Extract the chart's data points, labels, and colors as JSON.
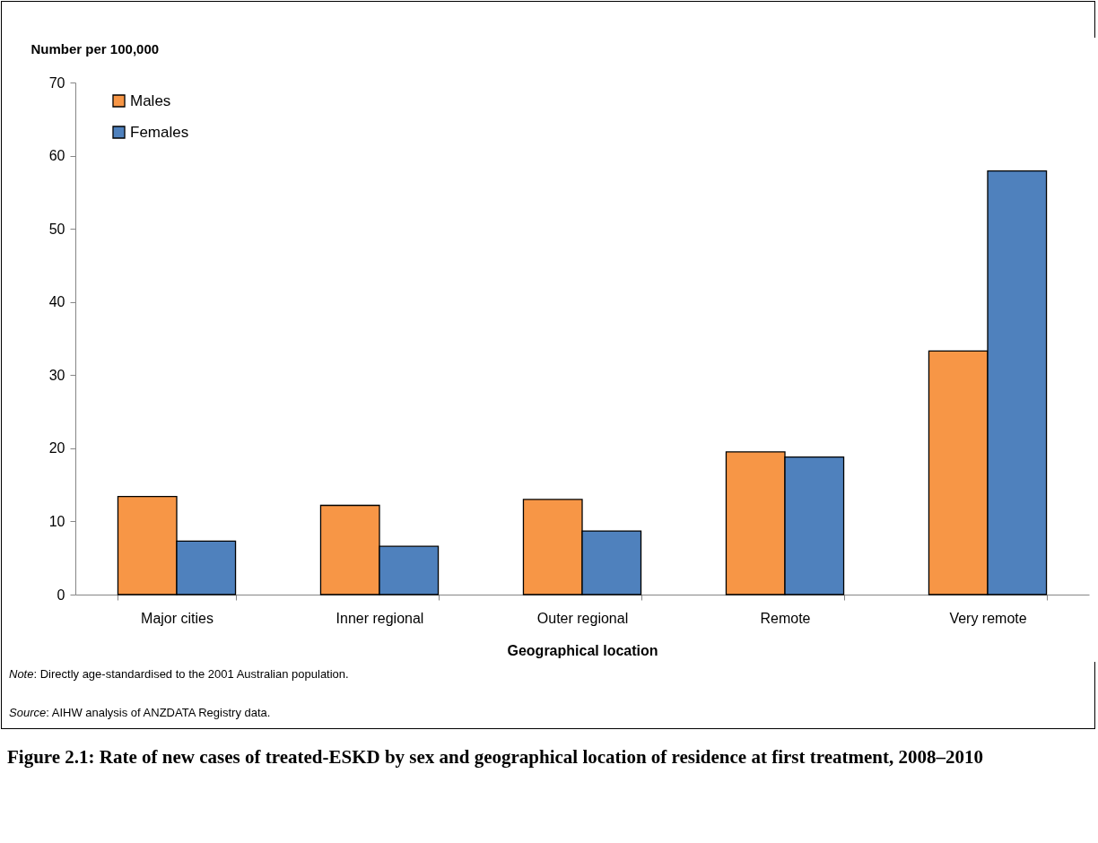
{
  "chart_data": {
    "type": "bar",
    "title": "Figure 2.1: Rate of new cases of treated-ESKD by sex and geographical location of residence at first treatment, 2008–2010",
    "xlabel": "Geographical location",
    "ylabel": "Number per 100,000",
    "categories": [
      "Major cities",
      "Inner regional",
      "Outer regional",
      "Remote",
      "Very remote"
    ],
    "series": [
      {
        "name": "Males",
        "color": "#f79646",
        "values": [
          13.4,
          12.2,
          13.0,
          19.5,
          33.3
        ]
      },
      {
        "name": "Females",
        "color": "#4f81bd",
        "values": [
          7.3,
          6.6,
          8.7,
          18.8,
          57.9
        ]
      }
    ],
    "ylim": [
      0,
      70
    ],
    "yticks": [
      0,
      10,
      20,
      30,
      40,
      50,
      60,
      70
    ],
    "grid": false,
    "legend": "top left",
    "annotations": [
      "Note: Directly age-standardised to the 2001 Australian population.",
      "Source: AIHW analysis of ANZDATA Registry data."
    ]
  }
}
